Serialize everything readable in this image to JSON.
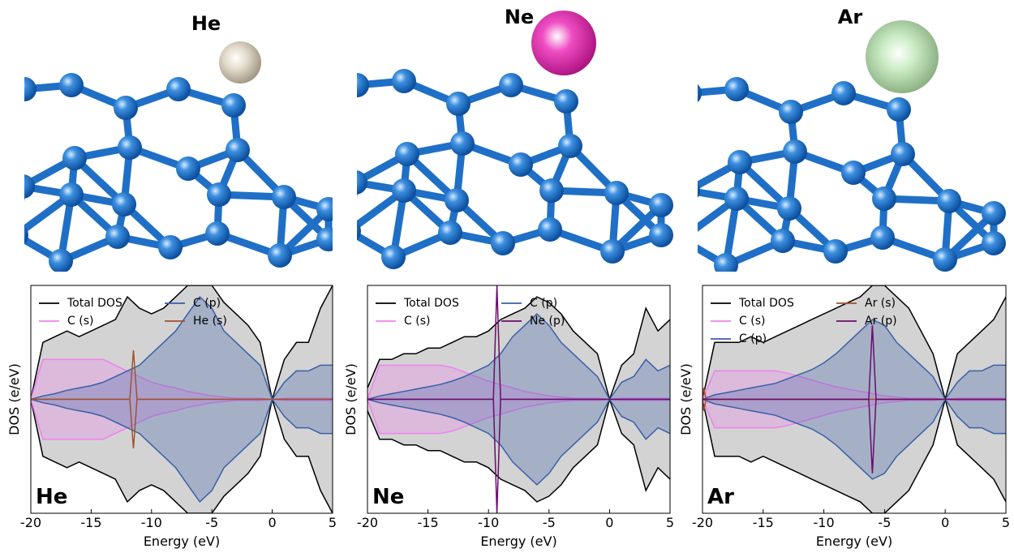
{
  "structures": [
    {
      "label": "He"
    },
    {
      "label": "Ne"
    },
    {
      "label": "Ar"
    }
  ],
  "chart_data": [
    {
      "type": "line",
      "panel_label": "He",
      "x_label": "Energy (eV)",
      "y_label": "DOS (e/eV)",
      "xlim": [
        -20,
        5
      ],
      "xticks": [
        -20,
        -15,
        -10,
        -5,
        0,
        5
      ],
      "ylim": [
        -10,
        10
      ],
      "x": [
        -20,
        -19,
        -18,
        -17,
        -16,
        -15,
        -14,
        -13,
        -12,
        -11,
        -10,
        -9,
        -8,
        -7,
        -6,
        -5,
        -4,
        -3,
        -2,
        -1,
        0,
        1,
        2,
        3,
        4,
        5
      ],
      "series": [
        {
          "name": "Total DOS",
          "color": "#000000",
          "fill": "#d3d3d3",
          "values": [
            0,
            5,
            5.5,
            6,
            5.5,
            6,
            6.5,
            7,
            9,
            8,
            7.5,
            8,
            9,
            10,
            10,
            10,
            8.5,
            7.5,
            6.5,
            5,
            0,
            3.5,
            5,
            5,
            8,
            10
          ]
        },
        {
          "name": "C (s)",
          "color": "#ee82ee",
          "fill": "#ee82ee",
          "values": [
            0,
            3.5,
            3.5,
            3.5,
            3.5,
            3.5,
            3.5,
            3,
            2.5,
            2,
            1.5,
            1.2,
            1,
            0.7,
            0.5,
            0.3,
            0.2,
            0.1,
            0.1,
            0.1,
            0,
            0.1,
            0.1,
            0.1,
            0.1,
            0.1
          ]
        },
        {
          "name": "C (p)",
          "color": "#3a5fa8",
          "fill": "#3a5fa8",
          "values": [
            0,
            0.3,
            0.5,
            0.8,
            1,
            1.2,
            1.5,
            2,
            2.5,
            3,
            4,
            5,
            6,
            7.5,
            9,
            8,
            6,
            5,
            4,
            3,
            0,
            1.5,
            2.5,
            2.5,
            3,
            3
          ]
        },
        {
          "name": "He (s)",
          "color": "#a0522d",
          "x": [
            -20,
            -11.8,
            -11.5,
            -11.2,
            5
          ],
          "values": [
            0,
            0,
            4.3,
            0,
            0
          ]
        }
      ]
    },
    {
      "type": "line",
      "panel_label": "Ne",
      "x_label": "Energy (eV)",
      "y_label": "DOS (e/eV)",
      "xlim": [
        -20,
        5
      ],
      "xticks": [
        -20,
        -15,
        -10,
        -5,
        0,
        5
      ],
      "ylim": [
        -10,
        10
      ],
      "x": [
        -20,
        -19,
        -18,
        -17,
        -16,
        -15,
        -14,
        -13,
        -12,
        -11,
        -10,
        -9,
        -8,
        -7,
        -6,
        -5,
        -4,
        -3,
        -2,
        -1,
        0,
        1,
        2,
        3,
        4,
        5
      ],
      "series": [
        {
          "name": "Total DOS",
          "color": "#000000",
          "fill": "#d3d3d3",
          "values": [
            1,
            3.5,
            3.5,
            4,
            4,
            4.5,
            4.5,
            5,
            5.5,
            5.5,
            6,
            7,
            7.5,
            8,
            9,
            8.5,
            7.5,
            6,
            5,
            4,
            0,
            3,
            4,
            8,
            6,
            7
          ]
        },
        {
          "name": "C (s)",
          "color": "#ee82ee",
          "fill": "#ee82ee",
          "values": [
            0,
            3,
            3,
            3,
            3,
            3,
            3,
            2.8,
            2.4,
            2,
            1.6,
            1.3,
            1,
            0.7,
            0.5,
            0.3,
            0.2,
            0.1,
            0.1,
            0.1,
            0,
            0.1,
            0.1,
            0.1,
            0.1,
            0.1
          ]
        },
        {
          "name": "C (p)",
          "color": "#3a5fa8",
          "fill": "#3a5fa8",
          "values": [
            0,
            0.3,
            0.5,
            0.7,
            0.9,
            1.1,
            1.3,
            1.6,
            2,
            2.5,
            3,
            4,
            5.5,
            6.5,
            7.5,
            6.5,
            5,
            4,
            3,
            2,
            0,
            1.5,
            2,
            3.5,
            2.5,
            3
          ]
        },
        {
          "name": "Ne (p)",
          "color": "#6a0d6a",
          "x": [
            -20,
            -9.6,
            -9.3,
            -9,
            5
          ],
          "values": [
            0,
            0,
            10,
            0,
            0
          ]
        }
      ]
    },
    {
      "type": "line",
      "panel_label": "Ar",
      "x_label": "Energy (eV)",
      "y_label": "DOS (e/eV)",
      "xlim": [
        -20,
        5
      ],
      "xticks": [
        -20,
        -15,
        -10,
        -5,
        0,
        5
      ],
      "ylim": [
        -10,
        10
      ],
      "x": [
        -20,
        -19,
        -18,
        -17,
        -16,
        -15,
        -14,
        -13,
        -12,
        -11,
        -10,
        -9,
        -8,
        -7,
        -6,
        -5,
        -4,
        -3,
        -2,
        -1,
        0,
        1,
        2,
        3,
        4,
        5
      ],
      "series": [
        {
          "name": "Total DOS",
          "color": "#000000",
          "fill": "#d3d3d3",
          "values": [
            0,
            5,
            5,
            5,
            5.5,
            5,
            5.5,
            6,
            6.5,
            7,
            7.5,
            8,
            8.5,
            9,
            10,
            10,
            9,
            8,
            6,
            4,
            0,
            4,
            5,
            6,
            7,
            9
          ]
        },
        {
          "name": "C (s)",
          "color": "#ee82ee",
          "fill": "#ee82ee",
          "values": [
            0,
            2.5,
            2.5,
            2.5,
            2.5,
            2.5,
            2.5,
            2.3,
            2,
            1.7,
            1.4,
            1.1,
            0.9,
            0.7,
            0.5,
            0.3,
            0.2,
            0.1,
            0.1,
            0.1,
            0,
            0.1,
            0.1,
            0.1,
            0.1,
            0.1
          ]
        },
        {
          "name": "C (p)",
          "color": "#3a5fa8",
          "fill": "#3a5fa8",
          "values": [
            0,
            0.4,
            0.6,
            0.8,
            1,
            1.2,
            1.4,
            1.8,
            2.2,
            2.6,
            3.2,
            4,
            5,
            6,
            7,
            6.5,
            5,
            4,
            3,
            2,
            0,
            1.5,
            2.5,
            2.5,
            3,
            3
          ]
        },
        {
          "name": "Ar (s)",
          "color": "#a0522d",
          "x": [
            -20,
            -19.9,
            -19.7,
            5
          ],
          "values": [
            0,
            1,
            0,
            0
          ]
        },
        {
          "name": "Ar (p)",
          "color": "#6a0d6a",
          "x": [
            -20,
            -6.3,
            -6,
            -5.7,
            5
          ],
          "values": [
            0,
            0,
            6.5,
            0,
            0
          ]
        }
      ]
    }
  ]
}
